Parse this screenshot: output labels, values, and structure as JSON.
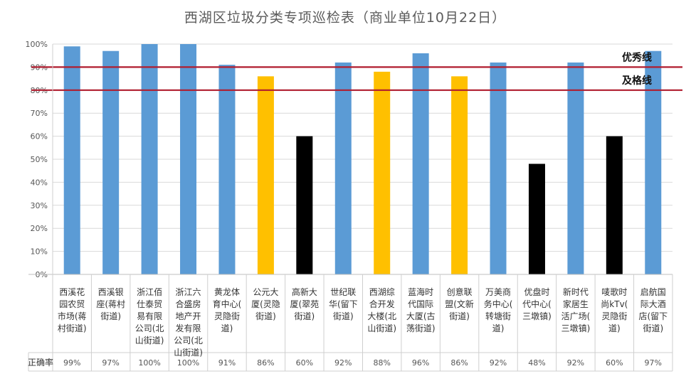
{
  "chart_data": {
    "type": "bar",
    "title": "西湖区垃圾分类专项巡检表（商业单位10月22日）",
    "ylim": [
      0,
      100
    ],
    "yticks": [
      "0%",
      "10%",
      "20%",
      "30%",
      "40%",
      "50%",
      "60%",
      "70%",
      "80%",
      "90%",
      "100%"
    ],
    "grid": true,
    "categories": [
      [
        "西溪花",
        "园农贸",
        "市场(蒋",
        "村街道)"
      ],
      [
        "西溪银",
        "座(蒋村",
        "街道)"
      ],
      [
        "浙江佰",
        "仕泰贸",
        "易有限",
        "公司(北",
        "山街道)"
      ],
      [
        "浙江六",
        "合盛房",
        "地产开",
        "发有限",
        "公司(北",
        "山街道)"
      ],
      [
        "黄龙体",
        "育中心(",
        "灵隐街",
        "道)"
      ],
      [
        "公元大",
        "厦(灵隐",
        "街道)"
      ],
      [
        "高新大",
        "厦(翠苑",
        "街道)"
      ],
      [
        "世纪联",
        "华(留下",
        "街道)"
      ],
      [
        "西湖综",
        "合开发",
        "大楼(北",
        "山街道)"
      ],
      [
        "蓝海时",
        "代国际",
        "大厦(古",
        "荡街道)"
      ],
      [
        "创意联",
        "盟(文新",
        "街道)"
      ],
      [
        "万美商",
        "务中心(",
        "转塘街",
        "道)"
      ],
      [
        "优盘时",
        "代中心(",
        "三墩镇)"
      ],
      [
        "新时代",
        "家居生",
        "活广场(",
        "三墩镇)"
      ],
      [
        "唛歌时",
        "尚kTv(",
        "灵隐街",
        "道)"
      ],
      [
        "启航国",
        "际大酒",
        "店(留下",
        "街道)"
      ]
    ],
    "values": [
      99,
      97,
      100,
      100,
      91,
      86,
      60,
      92,
      88,
      96,
      86,
      92,
      48,
      92,
      60,
      97
    ],
    "value_labels": [
      "99%",
      "97%",
      "100%",
      "100%",
      "91%",
      "86%",
      "60%",
      "92%",
      "88%",
      "96%",
      "86%",
      "92%",
      "48%",
      "92%",
      "60%",
      "97%"
    ],
    "colors": [
      "#5b9bd5",
      "#5b9bd5",
      "#5b9bd5",
      "#5b9bd5",
      "#5b9bd5",
      "#ffc000",
      "#000000",
      "#5b9bd5",
      "#ffc000",
      "#5b9bd5",
      "#ffc000",
      "#5b9bd5",
      "#000000",
      "#5b9bd5",
      "#000000",
      "#5b9bd5"
    ],
    "table_row_label": "正确率",
    "reference_lines": [
      {
        "label": "优秀线",
        "value": 90,
        "color": "#b01c2e"
      },
      {
        "label": "及格线",
        "value": 80,
        "color": "#b01c2e"
      }
    ]
  }
}
